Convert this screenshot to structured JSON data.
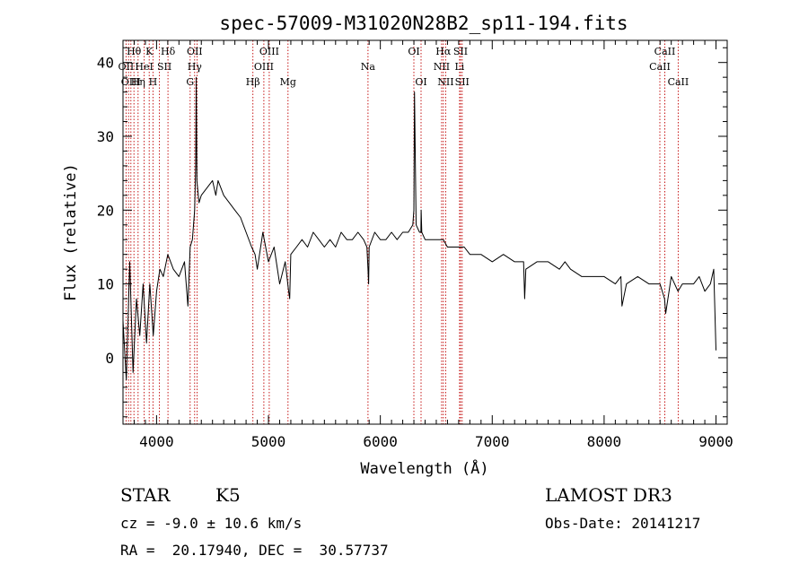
{
  "chart_data": {
    "type": "line",
    "title": "spec-57009-M31020N28B2_sp11-194.fits",
    "xlabel": "Wavelength (Å)",
    "ylabel": "Flux (relative)",
    "xlim": [
      3700,
      9100
    ],
    "ylim": [
      -9,
      43
    ],
    "xticks": [
      4000,
      5000,
      6000,
      7000,
      8000,
      9000
    ],
    "yticks": [
      0,
      10,
      20,
      30,
      40
    ],
    "series": [
      {
        "line_color": "#000000",
        "x": [
          3700,
          3730,
          3760,
          3790,
          3820,
          3850,
          3880,
          3910,
          3940,
          3970,
          4000,
          4030,
          4060,
          4100,
          4150,
          4200,
          4250,
          4280,
          4300,
          4320,
          4340,
          4350,
          4355,
          4360,
          4380,
          4400,
          4450,
          4500,
          4530,
          4550,
          4600,
          4650,
          4700,
          4750,
          4800,
          4850,
          4880,
          4900,
          4950,
          5000,
          5050,
          5100,
          5150,
          5180,
          5190,
          5200,
          5250,
          5300,
          5350,
          5400,
          5450,
          5500,
          5550,
          5600,
          5650,
          5700,
          5750,
          5800,
          5850,
          5880,
          5890,
          5895,
          5900,
          5950,
          6000,
          6050,
          6100,
          6150,
          6200,
          6250,
          6290,
          6300,
          6305,
          6320,
          6350,
          6362,
          6365,
          6370,
          6400,
          6450,
          6500,
          6550,
          6563,
          6600,
          6650,
          6700,
          6750,
          6800,
          6900,
          7000,
          7100,
          7200,
          7280,
          7290,
          7300,
          7400,
          7500,
          7600,
          7650,
          7700,
          7800,
          7900,
          8000,
          8100,
          8150,
          8160,
          8200,
          8300,
          8400,
          8500,
          8540,
          8550,
          8600,
          8660,
          8700,
          8800,
          8850,
          8900,
          8950,
          8980,
          9000
        ],
        "y": [
          5,
          -3,
          13,
          -2,
          8,
          3,
          10,
          2,
          10,
          3,
          9,
          12,
          11,
          14,
          12,
          11,
          13,
          7,
          15,
          16,
          20,
          26,
          38,
          24,
          21,
          22,
          23,
          24,
          22,
          24,
          22,
          21,
          20,
          19,
          17,
          15,
          14,
          12,
          17,
          13,
          15,
          10,
          13,
          9,
          8,
          14,
          15,
          16,
          15,
          17,
          16,
          15,
          16,
          15,
          17,
          16,
          16,
          17,
          16,
          15,
          12,
          10,
          15,
          17,
          16,
          16,
          17,
          16,
          17,
          17,
          18,
          20,
          36,
          18,
          17,
          17,
          20,
          17,
          16,
          16,
          16,
          16,
          16,
          15,
          15,
          15,
          15,
          14,
          14,
          13,
          14,
          13,
          13,
          8,
          12,
          13,
          13,
          12,
          13,
          12,
          11,
          11,
          11,
          10,
          11,
          7,
          10,
          11,
          10,
          10,
          8,
          6,
          11,
          9,
          10,
          10,
          11,
          9,
          10,
          12,
          1
        ]
      }
    ],
    "reference_lines": {
      "color": "#c00000",
      "wavelengths": [
        3727,
        3750,
        3771,
        3798,
        3835,
        3889,
        3934,
        3968,
        4026,
        4102,
        4300,
        4340,
        4363,
        4861,
        4959,
        5007,
        5175,
        5890,
        6300,
        6364,
        6548,
        6563,
        6584,
        6708,
        6717,
        6731,
        8498,
        8542,
        8662
      ],
      "labels": [
        {
          "text": "Hθ",
          "at": 3798,
          "row": 0
        },
        {
          "text": "OII",
          "at": 3727,
          "row": 1
        },
        {
          "text": "OIII",
          "at": 3771,
          "row": 2
        },
        {
          "text": "K",
          "at": 3934,
          "row": 0
        },
        {
          "text": "HeI",
          "at": 3889,
          "row": 1
        },
        {
          "text": "Hη",
          "at": 3835,
          "row": 2
        },
        {
          "text": "Hδ",
          "at": 4102,
          "row": 0
        },
        {
          "text": "SII",
          "at": 4070,
          "row": 1
        },
        {
          "text": "H",
          "at": 3968,
          "row": 2
        },
        {
          "text": "OII",
          "at": 4340,
          "row": 0
        },
        {
          "text": "Hγ",
          "at": 4340,
          "row": 1
        },
        {
          "text": "G",
          "at": 4300,
          "row": 2
        },
        {
          "text": "Hβ",
          "at": 4861,
          "row": 2
        },
        {
          "text": "OIII",
          "at": 5007,
          "row": 0
        },
        {
          "text": "OIII",
          "at": 4959,
          "row": 1
        },
        {
          "text": "Mg",
          "at": 5175,
          "row": 2
        },
        {
          "text": "Na",
          "at": 5890,
          "row": 1
        },
        {
          "text": "OI",
          "at": 6300,
          "row": 0
        },
        {
          "text": "OI",
          "at": 6364,
          "row": 2
        },
        {
          "text": "Hα",
          "at": 6563,
          "row": 0
        },
        {
          "text": "NII",
          "at": 6548,
          "row": 1
        },
        {
          "text": "NII",
          "at": 6584,
          "row": 2
        },
        {
          "text": "SII",
          "at": 6717,
          "row": 0
        },
        {
          "text": "Li",
          "at": 6708,
          "row": 1
        },
        {
          "text": "SII",
          "at": 6731,
          "row": 2
        },
        {
          "text": "CaII",
          "at": 8542,
          "row": 0
        },
        {
          "text": "CaII",
          "at": 8498,
          "row": 1
        },
        {
          "text": "CaII",
          "at": 8662,
          "row": 2
        }
      ]
    }
  },
  "info": {
    "object_class": "STAR",
    "subclass": "K5",
    "survey": "LAMOST DR3",
    "velocity": "cz = -9.0 ± 10.6 km/s",
    "obs_date": "Obs-Date: 20141217",
    "coords": "RA =  20.17940, DEC =  30.57737"
  }
}
